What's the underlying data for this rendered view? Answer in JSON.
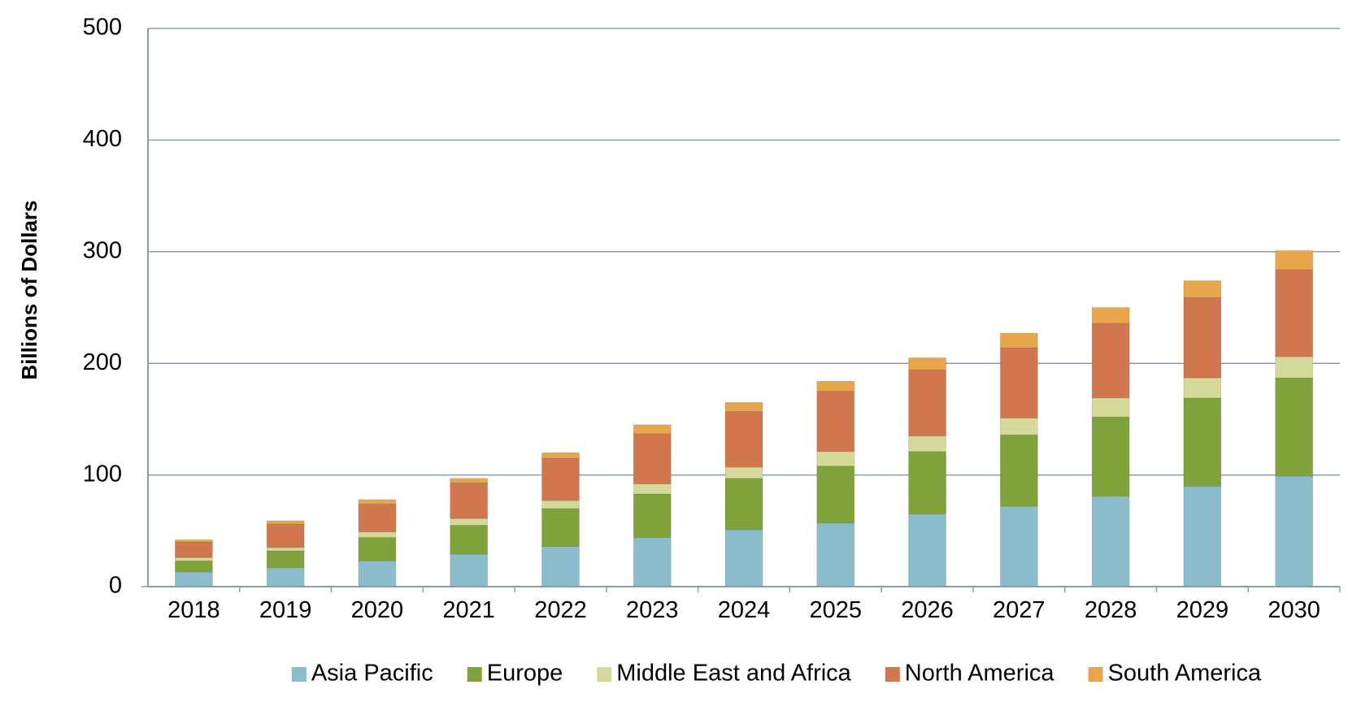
{
  "chart_data": {
    "type": "bar",
    "stacked": true,
    "title": "",
    "xlabel": "",
    "ylabel": "Billions of Dollars",
    "ylim": [
      0,
      500
    ],
    "yticks": [
      0,
      100,
      200,
      300,
      400,
      500
    ],
    "grid": true,
    "legend_position": "bottom",
    "categories": [
      "2018",
      "2019",
      "2020",
      "2021",
      "2022",
      "2023",
      "2024",
      "2025",
      "2026",
      "2027",
      "2028",
      "2029",
      "2030"
    ],
    "series": [
      {
        "name": "Asia Pacific",
        "color": "#8bbccc",
        "values": [
          13,
          17,
          23,
          29,
          36,
          44,
          51,
          57,
          65,
          72,
          81,
          90,
          99
        ]
      },
      {
        "name": "Europe",
        "color": "#7fa33a",
        "values": [
          10,
          15,
          21,
          26,
          34,
          39,
          46,
          51,
          56,
          64,
          71,
          79,
          88
        ]
      },
      {
        "name": "Middle East and Africa",
        "color": "#d4d99a",
        "values": [
          3,
          3,
          5,
          6,
          7,
          9,
          10,
          13,
          14,
          15,
          17,
          18,
          19
        ]
      },
      {
        "name": "North America",
        "color": "#d0774f",
        "values": [
          14,
          21,
          25,
          32,
          38,
          45,
          50,
          54,
          59,
          63,
          67,
          72,
          78
        ]
      },
      {
        "name": "South America",
        "color": "#e8a64c",
        "values": [
          2,
          3,
          4,
          4,
          5,
          8,
          8,
          9,
          11,
          13,
          14,
          15,
          17
        ]
      }
    ]
  }
}
